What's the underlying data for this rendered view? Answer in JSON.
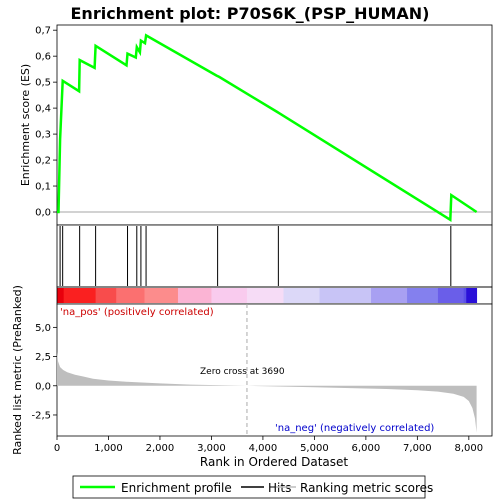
{
  "chart_data": {
    "type": "line",
    "title": "Enrichment plot: P70S6K_(PSP_HUMAN)",
    "xlabel": "Rank in Ordered Dataset",
    "x_ticks": [
      "0",
      "1,000",
      "2,000",
      "3,000",
      "4,000",
      "5,000",
      "6,000",
      "7,000",
      "8,000"
    ],
    "xlim": [
      0,
      8450
    ],
    "panels": [
      {
        "name": "enrichment",
        "ylabel": "Enrichment score (ES)",
        "ylim": [
          -0.05,
          0.72
        ],
        "y_ticks": [
          "0,0",
          "0,1",
          "0,2",
          "0,3",
          "0,4",
          "0,5",
          "0,6",
          "0,7"
        ],
        "series": [
          {
            "name": "Enrichment profile",
            "color": "#00ff00",
            "x": [
              0,
              30,
              60,
              110,
              430,
              440,
              730,
              750,
              1350,
              1370,
              1530,
              1550,
              1610,
              1630,
              1710,
              1730,
              3100,
              3150,
              4280,
              4320,
              7640,
              7660,
              8150
            ],
            "y": [
              0.0,
              0.0,
              0.28,
              0.505,
              0.465,
              0.585,
              0.555,
              0.64,
              0.565,
              0.61,
              0.595,
              0.635,
              0.615,
              0.66,
              0.65,
              0.68,
              0.525,
              0.52,
              0.385,
              0.38,
              -0.03,
              0.065,
              0.0
            ]
          }
        ]
      },
      {
        "name": "hits",
        "hit_positions": [
          60,
          110,
          440,
          750,
          1370,
          1550,
          1630,
          1730,
          3120,
          4300,
          7650
        ]
      },
      {
        "name": "ranking",
        "ylabel": "Ranked list metric (PreRanked)",
        "ylim": [
          -4.3,
          7.0
        ],
        "y_ticks": [
          "-2,5",
          "0,0",
          "2,5",
          "5,0"
        ],
        "zero_cross_rank": 3690,
        "annotations": {
          "pos": "'na_pos' (positively correlated)",
          "neg": "'na_neg' (negatively correlated)",
          "zero_cross": "Zero cross at 3690"
        },
        "metric_curve": {
          "x": [
            0,
            20,
            60,
            120,
            200,
            350,
            500,
            700,
            1000,
            1400,
            2000,
            2600,
            3200,
            3690,
            4300,
            5000,
            5700,
            6400,
            7000,
            7400,
            7700,
            7900,
            8000,
            8070,
            8120,
            8150
          ],
          "y": [
            2.9,
            2.1,
            1.6,
            1.35,
            1.15,
            0.95,
            0.8,
            0.6,
            0.45,
            0.33,
            0.2,
            0.1,
            0.04,
            0.0,
            -0.06,
            -0.12,
            -0.2,
            -0.28,
            -0.38,
            -0.5,
            -0.68,
            -0.95,
            -1.3,
            -1.9,
            -2.8,
            -4.0
          ]
        }
      }
    ],
    "legend": {
      "placement": "bottom",
      "items": [
        {
          "label": "Enrichment profile",
          "color": "#00ff00"
        },
        {
          "label": "Hits",
          "color": "#000000"
        },
        {
          "label": "Ranking metric scores",
          "color": "#bebebe"
        }
      ]
    }
  }
}
